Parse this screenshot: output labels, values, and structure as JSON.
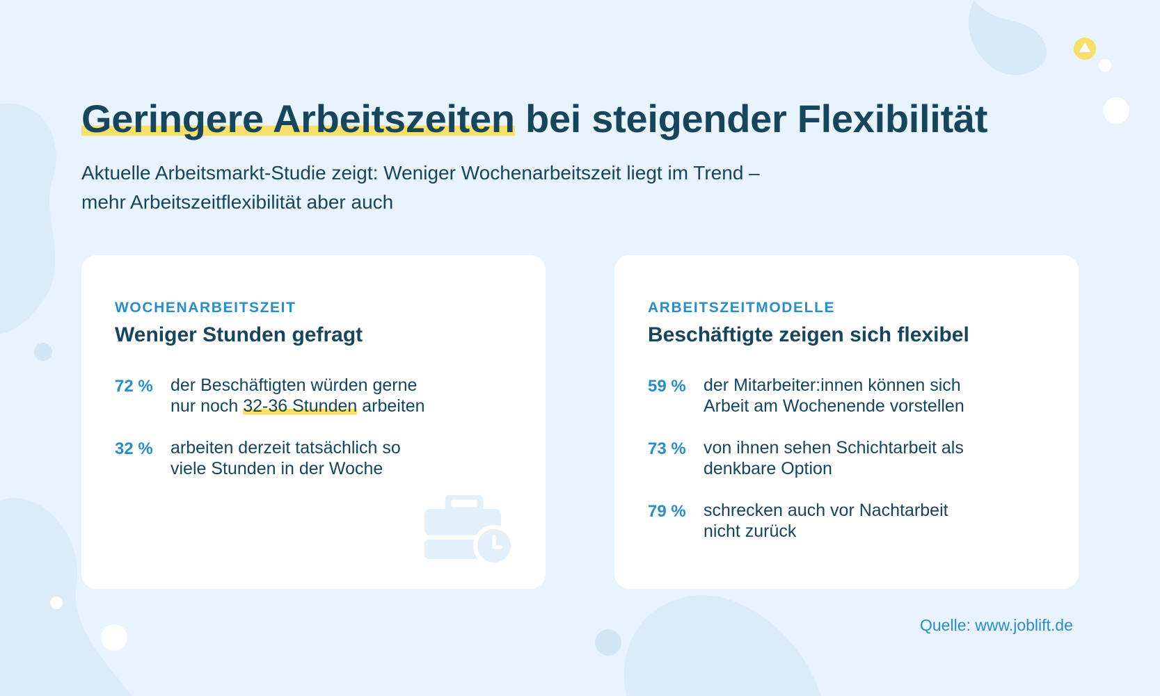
{
  "title": {
    "highlighted": "Geringere Arbeitszeiten",
    "rest": " bei steigender Flexibilität"
  },
  "subtitle": {
    "line1": "Aktuelle Arbeitsmarkt-Studie zeigt: Weniger Wochenarbeitszeit liegt im Trend –",
    "line2": "mehr Arbeitszeitflexibilität aber auch"
  },
  "card_left": {
    "kicker": "WOCHENARBEITSZEIT",
    "title": "Weniger Stunden gefragt",
    "stats": [
      {
        "pct": "72 %",
        "text_line1": "der Beschäftigten würden gerne",
        "text_line2_before": "nur noch ",
        "text_line2_highlight": "32-36 Stunden",
        "text_line2_after": " arbeiten"
      },
      {
        "pct": "32 %",
        "text": "arbeiten derzeit tatsächlich so viele Stunden in der Woche"
      }
    ],
    "icon": "briefcase-clock-icon"
  },
  "card_right": {
    "kicker": "ARBEITSZEITMODELLE",
    "title": "Beschäftigte zeigen sich flexibel",
    "stats": [
      {
        "pct": "59 %",
        "text": "der Mitarbeiter:innen können sich Arbeit am Wochenende vorstellen"
      },
      {
        "pct": "73 %",
        "text": "von ihnen sehen Schichtarbeit als denkbare Option"
      },
      {
        "pct": "79 %",
        "text": "schrecken auch vor Nachtarbeit nicht zurück"
      }
    ]
  },
  "source": "Quelle: www.joblift.de",
  "colors": {
    "background": "#e8f3fd",
    "dark": "#17455c",
    "accent_blue": "#2b8cc6",
    "highlight_yellow": "#f7df6b",
    "card": "#ffffff"
  }
}
